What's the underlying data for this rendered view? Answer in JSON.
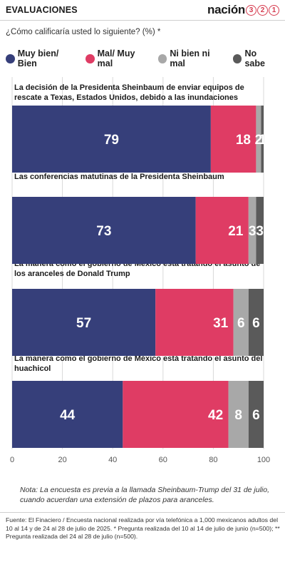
{
  "header": {
    "title": "EVALUACIONES",
    "brand_word": "nación",
    "brand_digits": [
      "3",
      "2",
      "1"
    ]
  },
  "question": "¿Cómo calificaría usted lo siguiente? (%) *",
  "colors": {
    "muy_bien": "#363f7a",
    "mal": "#df3c64",
    "ni_bien": "#a8a8a8",
    "no_sabe": "#5a5a5a"
  },
  "legend": [
    {
      "label": "Muy bien/ Bien",
      "color": "#363f7a"
    },
    {
      "label": "Mal/ Muy mal",
      "color": "#df3c64"
    },
    {
      "label": "Ni bien ni mal",
      "color": "#a8a8a8"
    },
    {
      "label": "No sabe",
      "color": "#5a5a5a"
    }
  ],
  "chart_data": {
    "type": "bar",
    "orientation": "horizontal",
    "stacked": true,
    "categories": [
      "La decisión de la Presidenta Sheinbaum de enviar equipos de rescate a Texas, Estados Unidos, debido a las inundaciones",
      "Las conferencias matutinas de la Presidenta Sheinbaum",
      "La manera como el gobierno de México está tratando el asunto de los aranceles de Donald Trump",
      "La manera como el gobierno de México está tratando el asunto del huachicol"
    ],
    "series": [
      {
        "name": "Muy bien/ Bien",
        "values": [
          79,
          73,
          57,
          44
        ]
      },
      {
        "name": "Mal/ Muy mal",
        "values": [
          18,
          21,
          31,
          42
        ]
      },
      {
        "name": "Ni bien ni mal",
        "values": [
          2,
          3,
          6,
          8
        ]
      },
      {
        "name": "No sabe",
        "values": [
          1,
          3,
          6,
          6
        ]
      }
    ],
    "xlim": [
      0,
      100
    ],
    "xticks": [
      0,
      20,
      40,
      60,
      80,
      100
    ],
    "grid": true,
    "legend_position": "top"
  },
  "note": "Nota: La encuesta es previa a la llamada Sheinbaum-Trump del 31 de julio, cuando acuerdan una extensión de plazos para aranceles.",
  "source": "Fuente:  El Finaciero / Encuesta nacional realizada por vía telefónica a 1,000 mexicanos adultos del 10 al 14 y de 24 al 28 de julio de 2025. * Pregunta realizada del 10 al 14 de julio de junio (n=500); ** Pregunta realizada del 24 al 28 de julio (n=500)."
}
